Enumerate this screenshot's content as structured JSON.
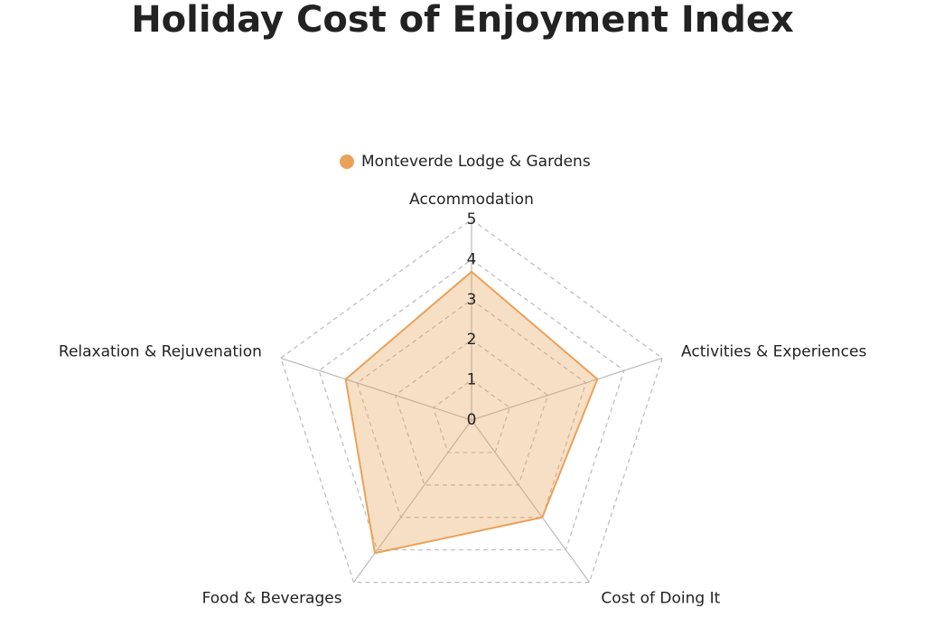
{
  "chart_data": {
    "type": "radar",
    "title": "Holiday Cost of Enjoyment Index",
    "categories": [
      "Accommodation",
      "Activities & Experiences",
      "Cost of Doing It",
      "Food & Beverages",
      "Relaxation & Rejuvenation"
    ],
    "series": [
      {
        "name": "Monteverde Lodge & Gardens",
        "color": "#e9a25a",
        "values": [
          3.7,
          3.3,
          3.0,
          4.1,
          3.3
        ]
      }
    ],
    "ylim": [
      0,
      5
    ],
    "yticks": [
      0,
      1,
      2,
      3,
      4,
      5
    ],
    "grid": true,
    "legend": "top"
  }
}
